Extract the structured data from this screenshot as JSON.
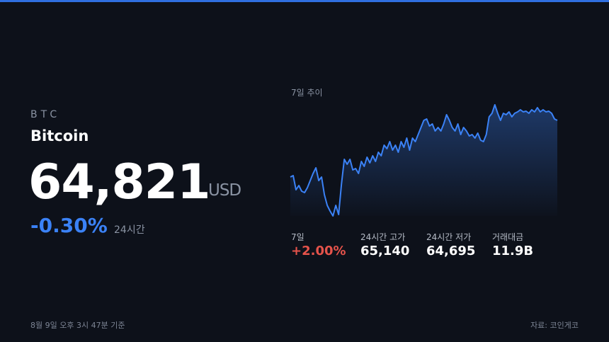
{
  "asset": {
    "symbol": "BTC",
    "name": "Bitcoin",
    "price": "64,821",
    "currency": "USD",
    "change": "-0.30%",
    "change_period": "24시간"
  },
  "chart_data": {
    "type": "line",
    "title": "7일 추이",
    "color": "#3b82f6",
    "values": [
      63549,
      63581,
      63263,
      63358,
      63231,
      63199,
      63310,
      63469,
      63628,
      63756,
      63469,
      63549,
      63151,
      62913,
      62786,
      62674,
      62913,
      62706,
      63390,
      63946,
      63835,
      63946,
      63708,
      63740,
      63628,
      63899,
      63787,
      63994,
      63867,
      64026,
      63899,
      64105,
      64026,
      64264,
      64185,
      64344,
      64153,
      64264,
      64105,
      64344,
      64217,
      64423,
      64153,
      64423,
      64344,
      64503,
      64662,
      64821,
      64853,
      64694,
      64741,
      64582,
      64662,
      64582,
      64741,
      64948,
      64821,
      64662,
      64582,
      64741,
      64503,
      64662,
      64582,
      64471,
      64503,
      64423,
      64535,
      64376,
      64344,
      64503,
      64901,
      64980,
      65171,
      64980,
      64821,
      64980,
      64948,
      65012,
      64901,
      64980,
      65012,
      65060,
      65012,
      65028,
      64980,
      65060,
      65012,
      65107,
      65012,
      65060,
      65012,
      65028,
      64980,
      64853,
      64821
    ]
  },
  "stats": [
    {
      "label": "7일",
      "value": "+2.00%"
    },
    {
      "label": "24시간 고가",
      "value": "65,140"
    },
    {
      "label": "24시간 저가",
      "value": "64,695"
    },
    {
      "label": "거래대금",
      "value": "11.9B"
    }
  ],
  "footer": {
    "timestamp": "8월 9일 오후 3시 47분 기준",
    "source": "자료: 코인게코"
  }
}
